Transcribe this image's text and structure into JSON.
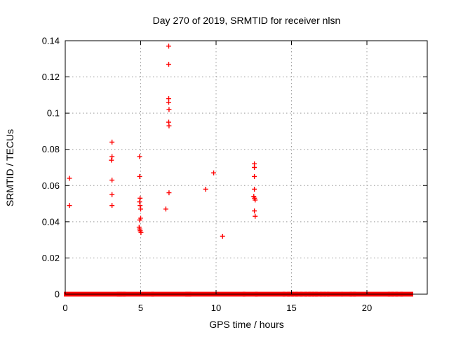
{
  "page": {
    "title": "Day 270 of 2019, SRMTID for receiver nlsn",
    "xlabel": "GPS time / hours",
    "ylabel": "SRMTID / TECUs"
  },
  "colors": {
    "marker": "#ff0000",
    "grid": "#999999",
    "axis": "#000000",
    "background": "#ffffff"
  },
  "chart_data": {
    "type": "scatter",
    "title": "Day 270 of 2019, SRMTID for receiver nlsn",
    "xlabel": "GPS time / hours",
    "ylabel": "SRMTID / TECUs",
    "xlim": [
      0,
      24
    ],
    "ylim": [
      0,
      0.14
    ],
    "xticks": {
      "values": [
        0,
        5,
        10,
        15,
        20
      ],
      "labels": [
        "0",
        "5",
        "10",
        "15",
        "20"
      ]
    },
    "yticks": {
      "values": [
        0,
        0.02,
        0.04,
        0.06,
        0.08,
        0.1,
        0.12,
        0.14
      ],
      "labels": [
        "0",
        "0.02",
        "0.04",
        "0.06",
        "0.08",
        "0.1",
        "0.12",
        "0.14"
      ]
    },
    "grid": true,
    "legend": "none",
    "marker": {
      "shape": "plus",
      "color": "#ff0000",
      "size": 7
    },
    "series": [
      {
        "name": "SRMTID",
        "points": [
          [
            0.28,
            0.064
          ],
          [
            0.28,
            0.049
          ],
          [
            3.06,
            0.074
          ],
          [
            3.1,
            0.084
          ],
          [
            3.1,
            0.076
          ],
          [
            3.1,
            0.063
          ],
          [
            3.1,
            0.055
          ],
          [
            3.1,
            0.049
          ],
          [
            4.93,
            0.076
          ],
          [
            4.93,
            0.065
          ],
          [
            4.96,
            0.053
          ],
          [
            4.93,
            0.051
          ],
          [
            4.96,
            0.049
          ],
          [
            5.0,
            0.047
          ],
          [
            5.0,
            0.042
          ],
          [
            4.94,
            0.041
          ],
          [
            4.9,
            0.037
          ],
          [
            4.94,
            0.036
          ],
          [
            4.97,
            0.035
          ],
          [
            5.02,
            0.034
          ],
          [
            6.86,
            0.137
          ],
          [
            6.86,
            0.127
          ],
          [
            6.86,
            0.108
          ],
          [
            6.86,
            0.106
          ],
          [
            6.88,
            0.102
          ],
          [
            6.86,
            0.095
          ],
          [
            6.88,
            0.093
          ],
          [
            6.88,
            0.056
          ],
          [
            6.67,
            0.047
          ],
          [
            9.31,
            0.058
          ],
          [
            9.84,
            0.067
          ],
          [
            10.43,
            0.032
          ],
          [
            12.54,
            0.072
          ],
          [
            12.54,
            0.07
          ],
          [
            12.54,
            0.065
          ],
          [
            12.54,
            0.058
          ],
          [
            12.5,
            0.054
          ],
          [
            12.55,
            0.053
          ],
          [
            12.59,
            0.052
          ],
          [
            12.54,
            0.046
          ],
          [
            12.59,
            0.043
          ]
        ]
      }
    ],
    "baseline_band": {
      "y": 0,
      "segments": [
        [
          0.05,
          3.48
        ],
        [
          3.56,
          3.66
        ],
        [
          3.74,
          3.86
        ],
        [
          3.96,
          5.74
        ],
        [
          5.84,
          8.02
        ],
        [
          8.1,
          8.22
        ],
        [
          8.3,
          11.8
        ],
        [
          11.9,
          12.62
        ],
        [
          12.72,
          14.45
        ],
        [
          14.55,
          14.75
        ],
        [
          14.85,
          15.02
        ],
        [
          15.12,
          15.28
        ],
        [
          15.38,
          15.6
        ],
        [
          15.7,
          15.9
        ],
        [
          16.0,
          16.15
        ],
        [
          16.25,
          16.38
        ],
        [
          16.48,
          16.6
        ],
        [
          16.7,
          16.92
        ],
        [
          17.02,
          17.15
        ],
        [
          17.25,
          17.38
        ],
        [
          17.48,
          18.25
        ],
        [
          18.45,
          18.9
        ],
        [
          19.0,
          19.12
        ],
        [
          19.22,
          21.42
        ],
        [
          21.52,
          21.65
        ],
        [
          21.75,
          21.92
        ],
        [
          22.02,
          22.25
        ],
        [
          22.35,
          22.93
        ]
      ]
    }
  }
}
